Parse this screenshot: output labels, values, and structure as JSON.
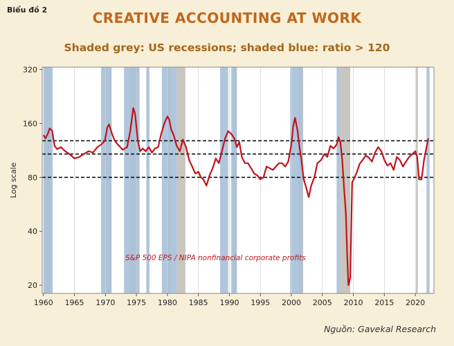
{
  "header": {
    "chart_label": "Biểu đồ 2"
  },
  "source": "Nguồn: Gavekal Research",
  "colors": {
    "title": "#c0671b",
    "line": "#c0131c",
    "recession_grey": "#c9c6c0",
    "ratio_blue": "#a9c1d9",
    "background": "#f8efd9"
  },
  "chart_data": {
    "type": "line",
    "title": "CREATIVE ACCOUNTING AT WORK",
    "subtitle": "Shaded grey: US recessions; shaded blue: ratio > 120",
    "xlabel": "",
    "ylabel": "Log scale",
    "yscale": "log",
    "xlim": [
      1959.8,
      2023
    ],
    "ylim": [
      18,
      330
    ],
    "xticks": [
      1960,
      1965,
      1970,
      1975,
      1980,
      1985,
      1990,
      1995,
      2000,
      2005,
      2010,
      2015,
      2020
    ],
    "yticks": [
      20,
      40,
      80,
      160,
      320
    ],
    "grid": "vertical",
    "reference_lines": [
      80,
      108,
      128
    ],
    "annotation": "S&P 500 EPS / NIPA nonfinancial corporate profits",
    "recessions_grey": [
      [
        1960.3,
        1961.1
      ],
      [
        1969.9,
        1970.9
      ],
      [
        1973.9,
        1975.2
      ],
      [
        1980.0,
        1980.5
      ],
      [
        1981.5,
        1982.9
      ],
      [
        1990.6,
        1991.2
      ],
      [
        2001.2,
        2001.9
      ],
      [
        2007.9,
        2009.5
      ],
      [
        2020.1,
        2020.4
      ]
    ],
    "ratio_blue": [
      [
        1960.0,
        1961.5
      ],
      [
        1969.3,
        1971.0
      ],
      [
        1973.0,
        1975.5
      ],
      [
        1976.6,
        1977.1
      ],
      [
        1979.1,
        1981.5
      ],
      [
        1988.5,
        1989.8
      ],
      [
        1990.3,
        1991.2
      ],
      [
        1999.8,
        2001.8
      ],
      [
        2007.3,
        2007.9
      ],
      [
        2021.8,
        2022.3
      ]
    ],
    "series": [
      {
        "name": "S&P 500 EPS / NIPA nonfinancial corporate profits",
        "x": [
          1960.0,
          1960.3,
          1960.7,
          1961.0,
          1961.4,
          1961.8,
          1962.2,
          1962.8,
          1963.5,
          1964.2,
          1965.0,
          1965.8,
          1966.5,
          1967.3,
          1968.0,
          1968.7,
          1969.3,
          1969.9,
          1970.3,
          1970.6,
          1971.0,
          1971.5,
          1972.0,
          1972.8,
          1973.5,
          1974.0,
          1974.5,
          1974.8,
          1975.2,
          1975.6,
          1976.0,
          1976.5,
          1977.0,
          1977.5,
          1978.0,
          1978.5,
          1979.0,
          1979.5,
          1980.0,
          1980.3,
          1980.6,
          1981.0,
          1981.5,
          1982.0,
          1982.5,
          1983.0,
          1983.5,
          1984.0,
          1984.5,
          1985.0,
          1985.4,
          1985.8,
          1986.3,
          1986.8,
          1987.3,
          1987.8,
          1988.3,
          1988.8,
          1989.3,
          1989.8,
          1990.3,
          1990.8,
          1991.2,
          1991.6,
          1992.0,
          1992.5,
          1993.0,
          1993.5,
          1994.0,
          1994.5,
          1995.0,
          1995.5,
          1996.0,
          1996.5,
          1997.0,
          1997.5,
          1998.0,
          1998.5,
          1999.0,
          1999.5,
          2000.0,
          2000.3,
          2000.6,
          2001.0,
          2001.3,
          2001.6,
          2002.0,
          2002.4,
          2002.8,
          2003.2,
          2003.7,
          2004.2,
          2004.8,
          2005.3,
          2005.8,
          2006.3,
          2006.8,
          2007.3,
          2007.6,
          2007.9,
          2008.2,
          2008.5,
          2008.8,
          2009.0,
          2009.2,
          2009.5,
          2009.8,
          2010.2,
          2010.6,
          2011.0,
          2011.5,
          2012.0,
          2012.5,
          2013.0,
          2013.5,
          2014.0,
          2014.5,
          2015.0,
          2015.5,
          2016.0,
          2016.5,
          2017.0,
          2017.5,
          2018.0,
          2018.5,
          2019.0,
          2019.5,
          2020.0,
          2020.3,
          2020.6,
          2021.0,
          2021.4,
          2021.8,
          2022.1
        ],
        "values": [
          138,
          132,
          140,
          150,
          146,
          120,
          115,
          118,
          112,
          108,
          102,
          104,
          108,
          112,
          110,
          118,
          122,
          128,
          152,
          158,
          142,
          128,
          122,
          114,
          118,
          145,
          195,
          180,
          130,
          112,
          116,
          112,
          118,
          110,
          116,
          118,
          140,
          160,
          175,
          168,
          148,
          138,
          120,
          112,
          130,
          118,
          100,
          92,
          84,
          86,
          80,
          78,
          72,
          82,
          90,
          102,
          96,
          112,
          132,
          145,
          140,
          132,
          118,
          126,
          104,
          96,
          96,
          90,
          84,
          82,
          78,
          80,
          92,
          90,
          88,
          92,
          96,
          96,
          92,
          98,
          122,
          155,
          172,
          145,
          118,
          102,
          78,
          70,
          62,
          72,
          80,
          96,
          100,
          108,
          104,
          120,
          116,
          122,
          134,
          126,
          100,
          70,
          50,
          30,
          20,
          22,
          75,
          80,
          86,
          95,
          100,
          106,
          103,
          98,
          110,
          118,
          112,
          100,
          93,
          96,
          88,
          104,
          100,
          92,
          98,
          104,
          108,
          112,
          104,
          78,
          78,
          100,
          118,
          132
        ]
      }
    ]
  }
}
